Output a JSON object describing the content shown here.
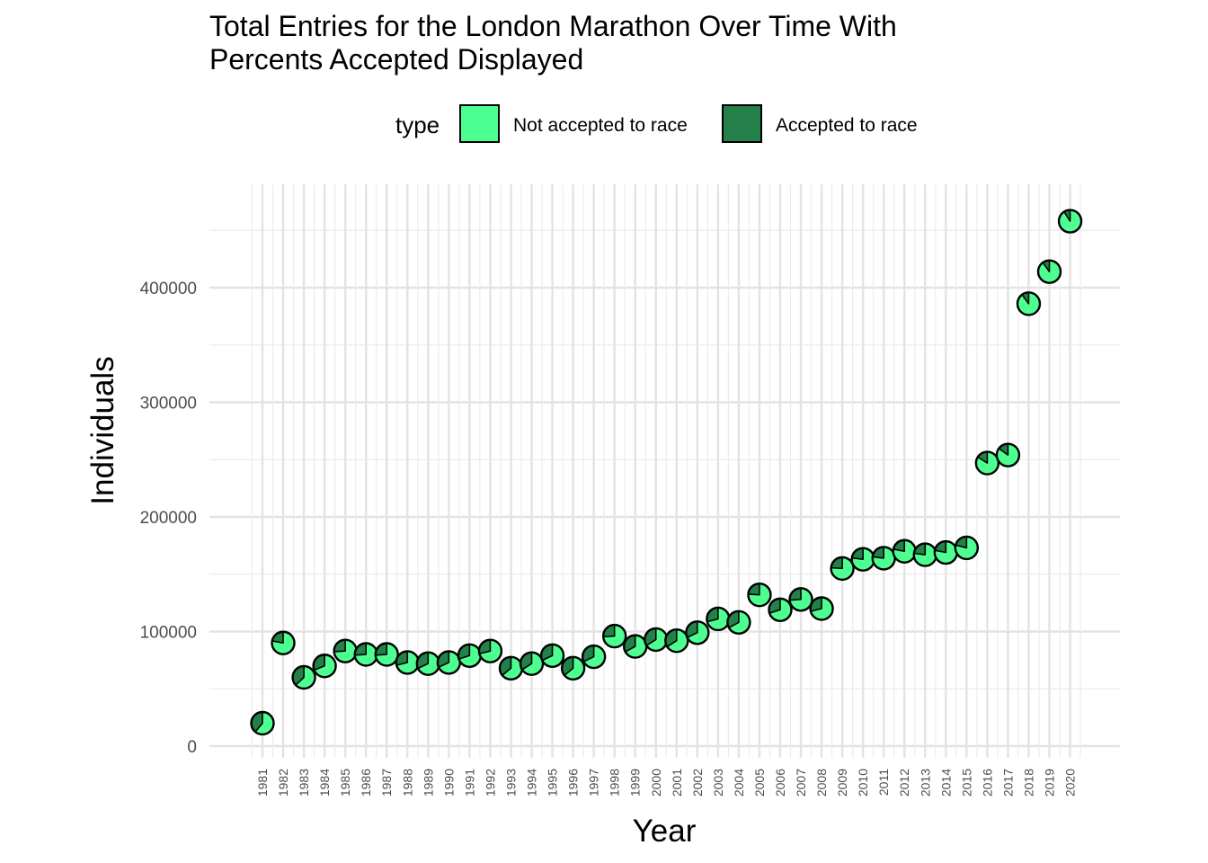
{
  "chart_data": {
    "type": "scatter",
    "marker": "pie",
    "title": "Total Entries for the London Marathon Over Time With\nPercents Accepted Displayed",
    "xlabel": "Year",
    "ylabel": "Individuals",
    "legend": {
      "title": "type",
      "placement": "top",
      "entries": [
        {
          "label": "Not accepted to race",
          "color": "#4dff91"
        },
        {
          "label": "Accepted to race",
          "color": "#238048"
        }
      ]
    },
    "grid": true,
    "ylim": [
      -10000,
      470000
    ],
    "yticks": [
      0,
      100000,
      200000,
      300000,
      400000
    ],
    "x": [
      "1981",
      "1982",
      "1983",
      "1984",
      "1985",
      "1986",
      "1987",
      "1988",
      "1989",
      "1990",
      "1991",
      "1992",
      "1993",
      "1994",
      "1995",
      "1996",
      "1997",
      "1998",
      "1999",
      "2000",
      "2001",
      "2002",
      "2003",
      "2004",
      "2005",
      "2006",
      "2007",
      "2008",
      "2009",
      "2010",
      "2011",
      "2012",
      "2013",
      "2014",
      "2015",
      "2016",
      "2017",
      "2018",
      "2019",
      "2020"
    ],
    "totals": [
      20000,
      90000,
      60000,
      70000,
      83000,
      80000,
      80000,
      73000,
      72000,
      73000,
      79000,
      83000,
      68000,
      72000,
      79000,
      68000,
      78000,
      96000,
      87000,
      93000,
      92000,
      99000,
      111000,
      108000,
      132000,
      119000,
      128000,
      120000,
      155000,
      163000,
      164000,
      170000,
      167000,
      169000,
      173000,
      247000,
      254000,
      386000,
      414000,
      458000
    ],
    "accepted_fraction": [
      0.39,
      0.22,
      0.37,
      0.31,
      0.26,
      0.26,
      0.26,
      0.29,
      0.32,
      0.32,
      0.3,
      0.29,
      0.36,
      0.34,
      0.32,
      0.36,
      0.32,
      0.26,
      0.33,
      0.34,
      0.34,
      0.32,
      0.29,
      0.33,
      0.24,
      0.3,
      0.26,
      0.29,
      0.24,
      0.23,
      0.23,
      0.22,
      0.23,
      0.22,
      0.21,
      0.16,
      0.15,
      0.1,
      0.1,
      0.09
    ]
  }
}
